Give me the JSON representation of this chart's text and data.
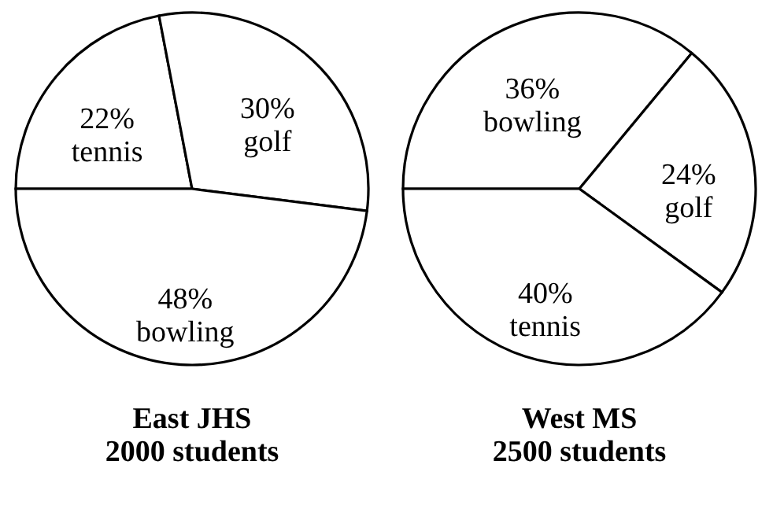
{
  "chart_data": [
    {
      "type": "pie",
      "title": "East JHS",
      "subtitle": "2000 students",
      "categories": [
        "tennis",
        "golf",
        "bowling"
      ],
      "values": [
        22,
        30,
        48
      ],
      "value_labels": [
        "22%",
        "30%",
        "48%"
      ],
      "colors": [
        "#ffffff",
        "#ffffff",
        "#ffffff"
      ]
    },
    {
      "type": "pie",
      "title": "West MS",
      "subtitle": "2500 students",
      "categories": [
        "bowling",
        "golf",
        "tennis"
      ],
      "values": [
        36,
        24,
        40
      ],
      "value_labels": [
        "36%",
        "24%",
        "40%"
      ],
      "colors": [
        "#ffffff",
        "#ffffff",
        "#ffffff"
      ]
    }
  ]
}
